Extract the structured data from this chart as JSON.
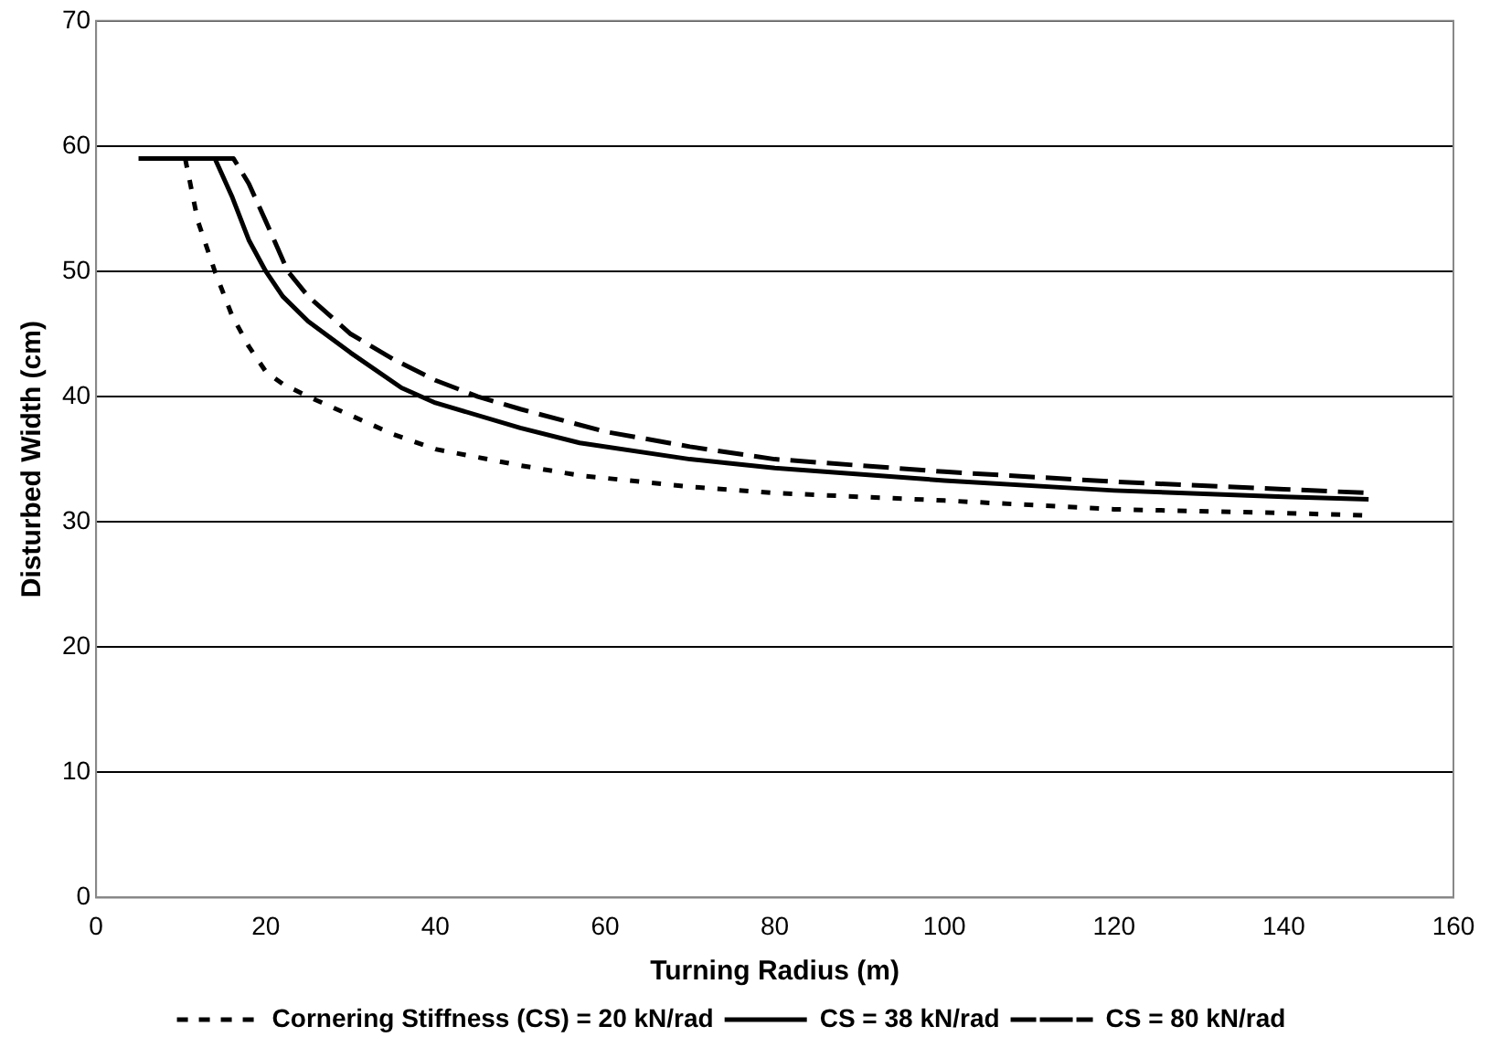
{
  "chart_data": {
    "type": "line",
    "xlabel": "Turning Radius (m)",
    "ylabel": "Disturbed Width (cm)",
    "xlim": [
      0,
      160
    ],
    "xticks": [
      0,
      20,
      40,
      60,
      80,
      100,
      120,
      140,
      160
    ],
    "ylim": [
      0,
      70
    ],
    "yticks": [
      0,
      10,
      20,
      30,
      40,
      50,
      60,
      70
    ],
    "grid": "y",
    "legend": "bottom",
    "marker": "none",
    "series": [
      {
        "name": "Cornering Stiffness (CS) = 20 kN/rad",
        "color": "#000000",
        "line_style": "dotted",
        "x": [
          10.5,
          12,
          14,
          16,
          18,
          20,
          22,
          25,
          30,
          35,
          40,
          50,
          57,
          70,
          80,
          100,
          120,
          140,
          150
        ],
        "values": [
          59,
          54,
          50,
          46.5,
          44,
          42,
          41,
          40,
          38.5,
          37,
          35.8,
          34.5,
          33.7,
          32.8,
          32.3,
          31.7,
          31,
          30.7,
          30.5
        ]
      },
      {
        "name": "CS = 38 kN/rad",
        "color": "#000000",
        "line_style": "solid",
        "x": [
          5,
          10,
          14,
          16,
          18,
          20,
          22,
          25,
          30,
          36,
          40,
          50,
          57,
          70,
          80,
          100,
          120,
          140,
          150
        ],
        "values": [
          59,
          59,
          59,
          56,
          52.5,
          50,
          48,
          46,
          43.5,
          40.7,
          39.5,
          37.5,
          36.3,
          35,
          34.3,
          33.3,
          32.5,
          32,
          31.8
        ]
      },
      {
        "name": "CS = 80 kN/rad",
        "color": "#000000",
        "line_style": "dashed",
        "x": [
          14,
          16.2,
          18,
          20,
          22.6,
          25,
          30,
          35,
          40,
          45,
          50,
          60,
          70,
          80,
          100,
          120,
          140,
          150
        ],
        "values": [
          59,
          59,
          57,
          54,
          50,
          48,
          45,
          43,
          41.3,
          40,
          39,
          37.2,
          36,
          35,
          34,
          33.2,
          32.6,
          32.3
        ]
      }
    ]
  }
}
